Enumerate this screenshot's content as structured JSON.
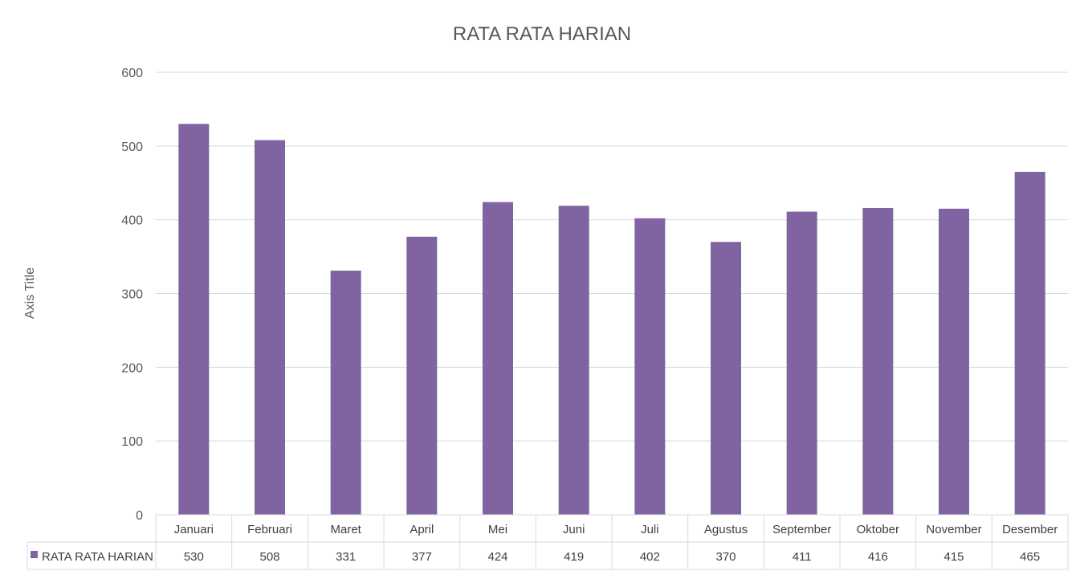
{
  "chart_data": {
    "type": "bar",
    "title": "RATA RATA HARIAN",
    "xlabel": "",
    "ylabel": "Axis Title",
    "categories": [
      "Januari",
      "Februari",
      "Maret",
      "April",
      "Mei",
      "Juni",
      "Juli",
      "Agustus",
      "September",
      "Oktober",
      "November",
      "Desember"
    ],
    "series": [
      {
        "name": "RATA RATA HARIAN",
        "values": [
          530,
          508,
          331,
          377,
          424,
          419,
          402,
          370,
          411,
          416,
          415,
          465
        ],
        "color": "#8064a2"
      }
    ],
    "ylim": [
      0,
      600
    ],
    "yticks": [
      "0",
      "100",
      "200",
      "300",
      "400",
      "500",
      "600"
    ],
    "grid": true,
    "legend": "data-table-below",
    "data_table": true
  },
  "colors": {
    "bar": "#8064a2",
    "gridline": "#d9d9d9",
    "text": "#595959"
  }
}
